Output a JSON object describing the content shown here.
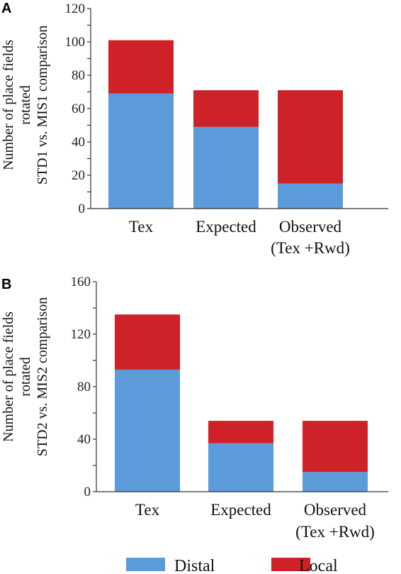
{
  "chart_data": [
    {
      "panel": "A",
      "type": "bar",
      "stacked": true,
      "categories": [
        [
          "Tex"
        ],
        [
          "Expected"
        ],
        [
          "Observed",
          "(Tex +Rwd)"
        ]
      ],
      "series": [
        {
          "name": "Distal",
          "color": "#5b9bd9",
          "values": [
            69,
            49,
            15
          ]
        },
        {
          "name": "Local",
          "color": "#cf2128",
          "values": [
            32,
            22,
            56
          ]
        }
      ],
      "ylabel": [
        "Number of place fields",
        "rotated",
        "STD1 vs. MIS1 comparison"
      ],
      "xlabel": "",
      "ylim": [
        0,
        120
      ],
      "yticks": [
        0,
        20,
        40,
        60,
        80,
        100,
        120
      ],
      "grid": false
    },
    {
      "panel": "B",
      "type": "bar",
      "stacked": true,
      "categories": [
        [
          "Tex"
        ],
        [
          "Expected"
        ],
        [
          "Observed",
          "(Tex +Rwd)"
        ]
      ],
      "series": [
        {
          "name": "Distal",
          "color": "#5b9bd9",
          "values": [
            93,
            37,
            15
          ]
        },
        {
          "name": "Local",
          "color": "#cf2128",
          "values": [
            42,
            17,
            39
          ]
        }
      ],
      "ylabel": [
        "Number of place fields",
        "rotated",
        "STD2 vs. MIS2 comparison"
      ],
      "xlabel": "",
      "ylim": [
        0,
        160
      ],
      "yticks": [
        0,
        40,
        80,
        120,
        160
      ],
      "grid": false
    }
  ],
  "legend": {
    "placement": "bottom",
    "items": [
      {
        "label": "Distal",
        "color": "#5b9bd9"
      },
      {
        "label": "Local",
        "color": "#cf2128"
      }
    ]
  }
}
